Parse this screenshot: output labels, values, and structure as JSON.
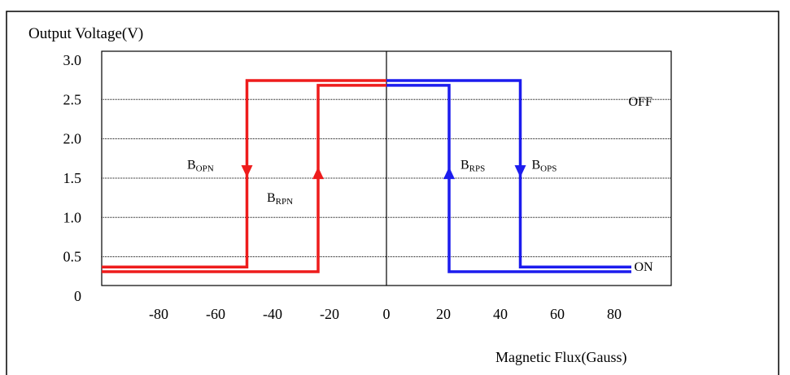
{
  "chart_data": {
    "type": "line",
    "ylabel": "Output Voltage(V)",
    "xlabel": "Magnetic Flux(Gauss)",
    "x_ticks": [
      "-80",
      "-60",
      "-40",
      "-20",
      "0",
      "20",
      "40",
      "60",
      "80"
    ],
    "x_tick_values": [
      -80,
      -60,
      -40,
      -20,
      0,
      20,
      40,
      60,
      80
    ],
    "y_ticks": [
      "0",
      "0.5",
      "1.0",
      "1.5",
      "2.0",
      "2.5",
      "3.0"
    ],
    "y_tick_values": [
      0,
      0.5,
      1.0,
      1.5,
      2.0,
      2.5,
      3.0
    ],
    "xlim": [
      -100,
      100
    ],
    "ylim": [
      0,
      3.0
    ],
    "gridlines_y": [
      0.5,
      1.0,
      1.5,
      2.0,
      2.5
    ],
    "grid": true,
    "series": [
      {
        "color": "#ee1c1c",
        "x": [
          -100,
          -49,
          -49,
          0
        ],
        "y": [
          0.37,
          0.37,
          2.74,
          2.74
        ]
      },
      {
        "color": "#ee1c1c",
        "x": [
          -100,
          -24,
          -24,
          0
        ],
        "y": [
          0.31,
          0.31,
          2.68,
          2.68
        ]
      },
      {
        "color": "#1c1cee",
        "x": [
          0,
          47,
          47,
          86
        ],
        "y": [
          2.74,
          2.74,
          0.37,
          0.37
        ]
      },
      {
        "color": "#1c1cee",
        "x": [
          0,
          22,
          22,
          86
        ],
        "y": [
          2.68,
          2.68,
          0.31,
          0.31
        ]
      }
    ],
    "annotations": [
      {
        "main": "B",
        "sub": "OPN",
        "x": -70,
        "y": 1.62
      },
      {
        "main": "B",
        "sub": "RPN",
        "x": -42,
        "y": 1.2
      },
      {
        "main": "B",
        "sub": "RPS",
        "x": 26,
        "y": 1.62
      },
      {
        "main": "B",
        "sub": "OPS",
        "x": 51,
        "y": 1.62
      },
      {
        "main": "OFF",
        "x": 85,
        "y": 2.42
      },
      {
        "main": "ON",
        "x": 87,
        "y": 0.32
      }
    ],
    "arrows": [
      {
        "color": "#ee1c1c",
        "x": -49,
        "y": 1.57,
        "direction": "down"
      },
      {
        "color": "#ee1c1c",
        "x": -24,
        "y": 1.57,
        "direction": "up"
      },
      {
        "color": "#1c1cee",
        "x": 22,
        "y": 1.57,
        "direction": "up"
      },
      {
        "color": "#1c1cee",
        "x": 47,
        "y": 1.57,
        "direction": "down"
      }
    ]
  }
}
